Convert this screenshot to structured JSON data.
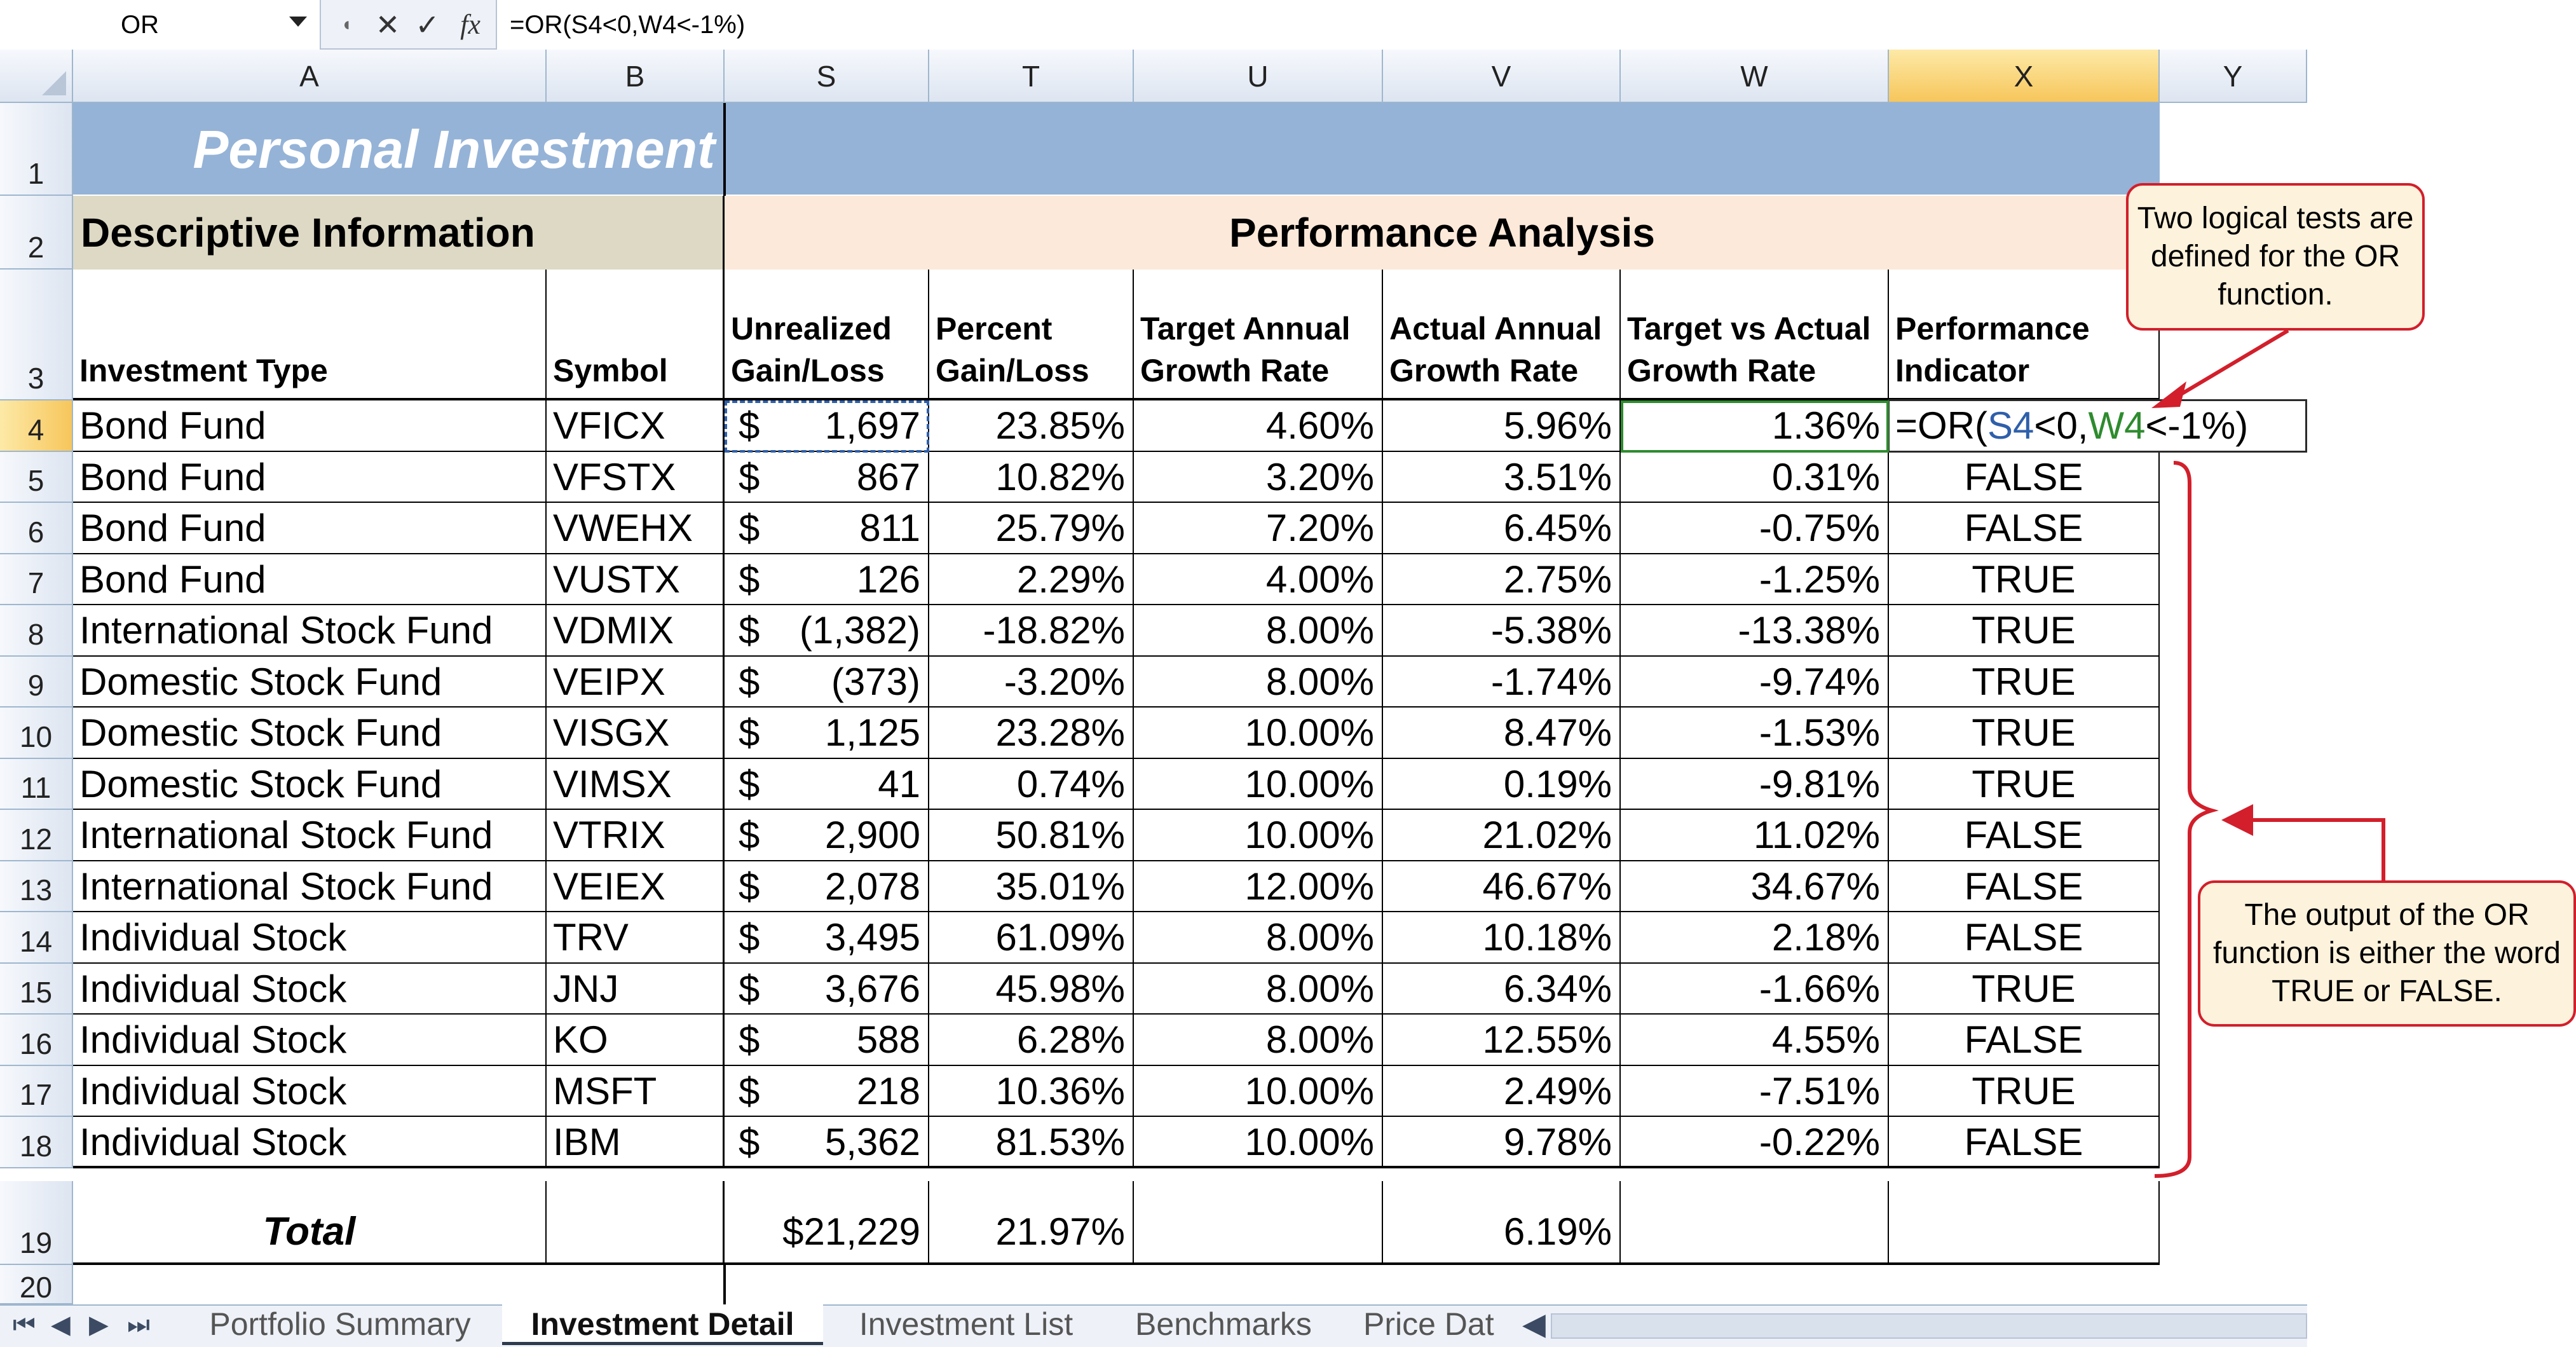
{
  "formula_bar": {
    "name_box": "OR",
    "cancel_icon": "✕",
    "enter_icon": "✓",
    "fx_icon": "fx",
    "formula": "=OR(S4<0,W4<-1%)"
  },
  "columns": [
    {
      "id": "A",
      "label": "A"
    },
    {
      "id": "B",
      "label": "B"
    },
    {
      "id": "S",
      "label": "S"
    },
    {
      "id": "T",
      "label": "T"
    },
    {
      "id": "U",
      "label": "U"
    },
    {
      "id": "V",
      "label": "V"
    },
    {
      "id": "W",
      "label": "W"
    },
    {
      "id": "X",
      "label": "X"
    },
    {
      "id": "Y",
      "label": "Y"
    }
  ],
  "title": "Personal Investment",
  "descriptive_header": "Descriptive Information",
  "performance_header": "Performance Analysis",
  "headers": {
    "a": "Investment Type",
    "b": "Symbol",
    "s1": "Unrealized",
    "s2": "Gain/Loss",
    "t1": "Percent",
    "t2": "Gain/Loss",
    "u1": "Target Annual",
    "u2": "Growth Rate",
    "v1": "Actual Annual",
    "v2": "Growth Rate",
    "w1": "Target vs Actual",
    "w2": "Growth Rate",
    "x1": "Performance",
    "x2": "Indicator"
  },
  "row_numbers": [
    "1",
    "2",
    "3",
    "4",
    "5",
    "6",
    "7",
    "8",
    "9",
    "10",
    "11",
    "12",
    "13",
    "14",
    "15",
    "16",
    "17",
    "18",
    "19",
    "20"
  ],
  "rows": [
    {
      "type": "Bond Fund",
      "symbol": "VFICX",
      "dollar": "$",
      "gain": "1,697",
      "pct": "23.85%",
      "target": "4.60%",
      "actual": "5.96%",
      "diff": "1.36%",
      "indicator": ""
    },
    {
      "type": "Bond Fund",
      "symbol": "VFSTX",
      "dollar": "$",
      "gain": "867",
      "pct": "10.82%",
      "target": "3.20%",
      "actual": "3.51%",
      "diff": "0.31%",
      "indicator": "FALSE"
    },
    {
      "type": "Bond Fund",
      "symbol": "VWEHX",
      "dollar": "$",
      "gain": "811",
      "pct": "25.79%",
      "target": "7.20%",
      "actual": "6.45%",
      "diff": "-0.75%",
      "indicator": "FALSE"
    },
    {
      "type": "Bond Fund",
      "symbol": "VUSTX",
      "dollar": "$",
      "gain": "126",
      "pct": "2.29%",
      "target": "4.00%",
      "actual": "2.75%",
      "diff": "-1.25%",
      "indicator": "TRUE"
    },
    {
      "type": "International Stock Fund",
      "symbol": "VDMIX",
      "dollar": "$",
      "gain": "(1,382)",
      "pct": "-18.82%",
      "target": "8.00%",
      "actual": "-5.38%",
      "diff": "-13.38%",
      "indicator": "TRUE"
    },
    {
      "type": "Domestic Stock Fund",
      "symbol": "VEIPX",
      "dollar": "$",
      "gain": "(373)",
      "pct": "-3.20%",
      "target": "8.00%",
      "actual": "-1.74%",
      "diff": "-9.74%",
      "indicator": "TRUE"
    },
    {
      "type": "Domestic Stock Fund",
      "symbol": "VISGX",
      "dollar": "$",
      "gain": "1,125",
      "pct": "23.28%",
      "target": "10.00%",
      "actual": "8.47%",
      "diff": "-1.53%",
      "indicator": "TRUE"
    },
    {
      "type": "Domestic Stock Fund",
      "symbol": "VIMSX",
      "dollar": "$",
      "gain": "41",
      "pct": "0.74%",
      "target": "10.00%",
      "actual": "0.19%",
      "diff": "-9.81%",
      "indicator": "TRUE"
    },
    {
      "type": "International Stock Fund",
      "symbol": "VTRIX",
      "dollar": "$",
      "gain": "2,900",
      "pct": "50.81%",
      "target": "10.00%",
      "actual": "21.02%",
      "diff": "11.02%",
      "indicator": "FALSE"
    },
    {
      "type": "International Stock Fund",
      "symbol": "VEIEX",
      "dollar": "$",
      "gain": "2,078",
      "pct": "35.01%",
      "target": "12.00%",
      "actual": "46.67%",
      "diff": "34.67%",
      "indicator": "FALSE"
    },
    {
      "type": "Individual Stock",
      "symbol": "TRV",
      "dollar": "$",
      "gain": "3,495",
      "pct": "61.09%",
      "target": "8.00%",
      "actual": "10.18%",
      "diff": "2.18%",
      "indicator": "FALSE"
    },
    {
      "type": "Individual Stock",
      "symbol": "JNJ",
      "dollar": "$",
      "gain": "3,676",
      "pct": "45.98%",
      "target": "8.00%",
      "actual": "6.34%",
      "diff": "-1.66%",
      "indicator": "TRUE"
    },
    {
      "type": "Individual Stock",
      "symbol": "KO",
      "dollar": "$",
      "gain": "588",
      "pct": "6.28%",
      "target": "8.00%",
      "actual": "12.55%",
      "diff": "4.55%",
      "indicator": "FALSE"
    },
    {
      "type": "Individual Stock",
      "symbol": "MSFT",
      "dollar": "$",
      "gain": "218",
      "pct": "10.36%",
      "target": "10.00%",
      "actual": "2.49%",
      "diff": "-7.51%",
      "indicator": "TRUE"
    },
    {
      "type": "Individual Stock",
      "symbol": "IBM",
      "dollar": "$",
      "gain": "5,362",
      "pct": "81.53%",
      "target": "10.00%",
      "actual": "9.78%",
      "diff": "-0.22%",
      "indicator": "FALSE"
    }
  ],
  "editing_formula": {
    "eq": "=OR(",
    "s4": "S4",
    "mid": "<0,",
    "w4": "W4",
    "end": "<-1%)"
  },
  "total": {
    "label": "Total",
    "gain": "$21,229",
    "pct": "21.97%",
    "actual": "6.19%"
  },
  "callouts": {
    "top": "Two logical tests are defined for the OR function.",
    "bottom": "The output of the OR function is either the word TRUE or FALSE."
  },
  "tabs": [
    "Portfolio Summary",
    "Investment Detail",
    "Investment List",
    "Benchmarks",
    "Price Dat"
  ],
  "active_tab": "Investment Detail",
  "colors": {
    "title_bg": "#95b3d7",
    "section_bg": "#fde9d9",
    "desc_bg": "#ddd9c4",
    "accent": "#d21f2b",
    "s4_ref": "#2f5faa",
    "w4_ref": "#2e8b2e"
  }
}
